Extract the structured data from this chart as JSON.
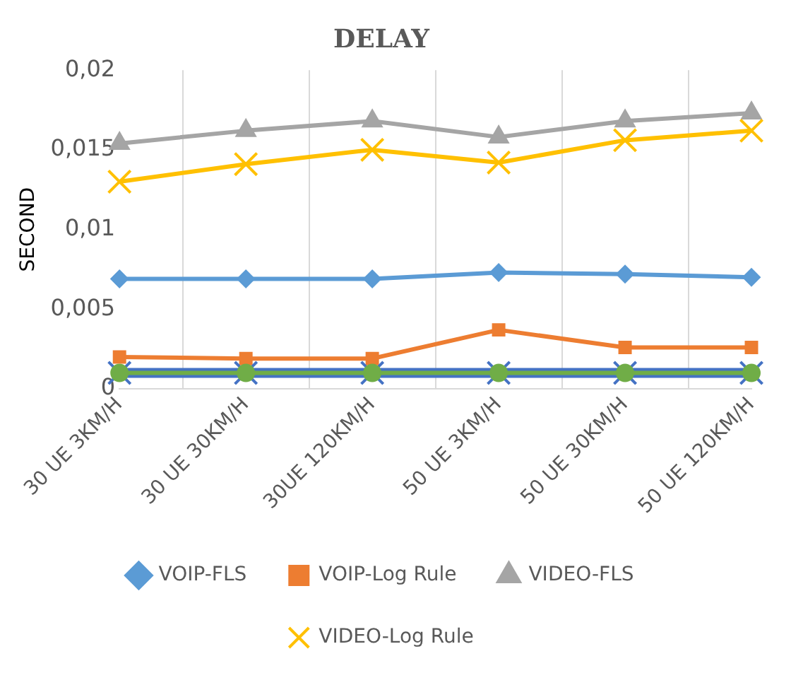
{
  "chart_data": {
    "type": "line",
    "title": "DELAY",
    "ylabel": "SECOND",
    "categories": [
      "30 UE 3KM/H",
      "30 UE 30KM/H",
      "30UE 120KM/H",
      "50 UE 3KM/H",
      "50 UE 30KM/H",
      "50 UE 120KM/H"
    ],
    "series": [
      {
        "name": "VOIP-FLS",
        "color": "#5b9bd5",
        "marker": "diamond",
        "values": [
          0.0069,
          0.0069,
          0.0069,
          0.0073,
          0.0072,
          0.007
        ]
      },
      {
        "name": "VOIP-Log Rule",
        "color": "#ed7d31",
        "marker": "square",
        "values": [
          0.002,
          0.0019,
          0.0019,
          0.0037,
          0.0026,
          0.0026
        ]
      },
      {
        "name": "VIDEO-FLS",
        "color": "#a5a5a5",
        "marker": "triangle",
        "values": [
          0.0154,
          0.0162,
          0.0168,
          0.0158,
          0.0168,
          0.0173
        ]
      },
      {
        "name": "VIDEO-Log Rule",
        "color": "#ffc000",
        "marker": "cross",
        "values": [
          0.013,
          0.0141,
          0.015,
          0.0142,
          0.0156,
          0.0162
        ]
      },
      {
        "color": "#4472c4",
        "marker": "cross",
        "values": [
          0.001,
          0.001,
          0.001,
          0.001,
          0.001,
          0.001
        ]
      },
      {
        "color": "#70ad47",
        "marker": "circle",
        "values": [
          0.001,
          0.001,
          0.001,
          0.001,
          0.001,
          0.001
        ]
      }
    ],
    "ylim": [
      0,
      0.02
    ],
    "yticks": [
      0,
      {
        "value": 0.005,
        "label": "0,005"
      },
      {
        "value": 0.01,
        "label": "0,01"
      },
      {
        "value": 0.015,
        "label": "0,015"
      },
      {
        "value": 0.02,
        "label": "0,02"
      }
    ],
    "grid": "x",
    "legend": "bottom",
    "line_style": "solid"
  }
}
